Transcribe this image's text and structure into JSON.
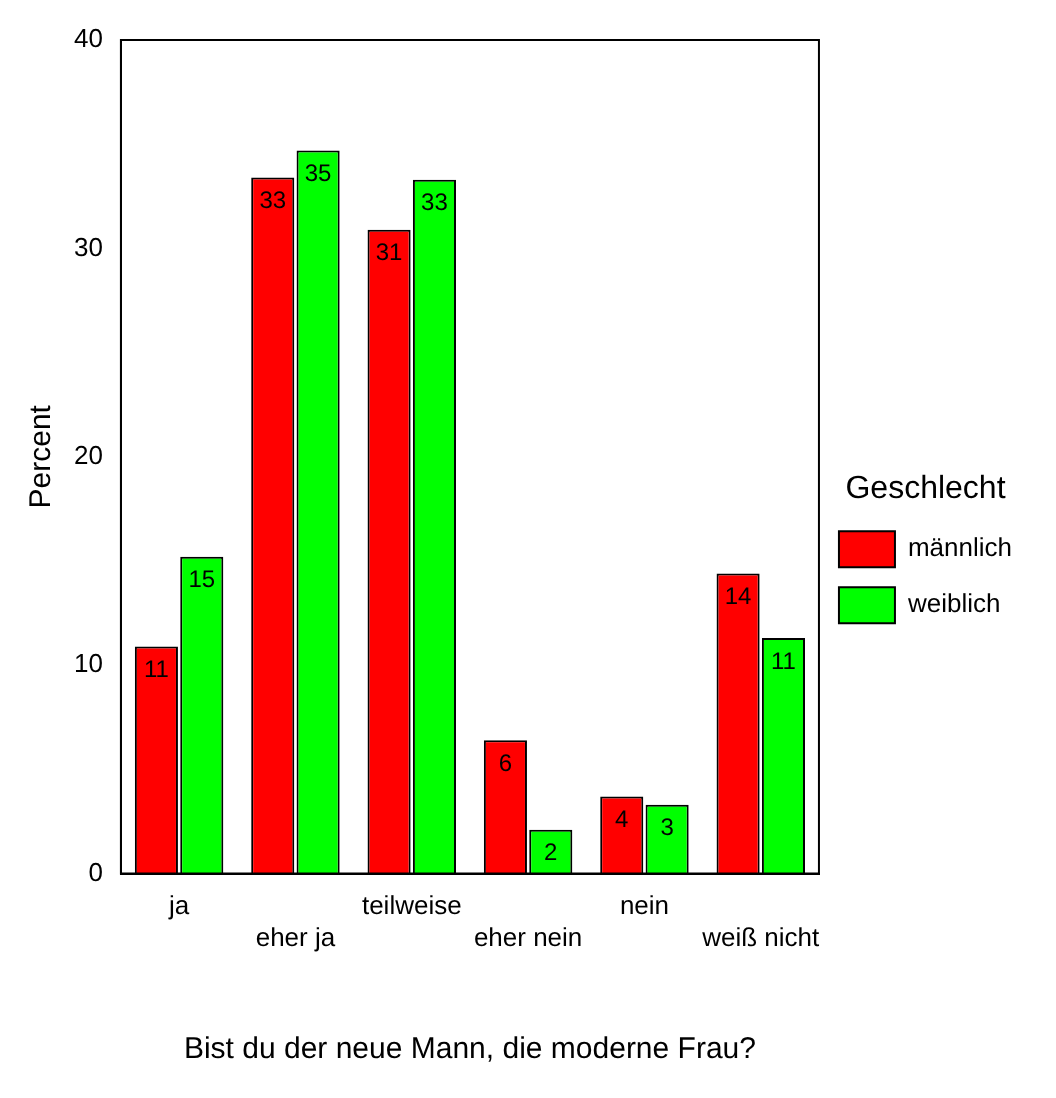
{
  "chart_data": {
    "type": "bar",
    "xlabel": "Bist du der neue Mann, die moderne Frau?",
    "ylabel": "Percent",
    "legend_title": "Geschlecht",
    "categories": [
      "ja",
      "eher ja",
      "teilweise",
      "eher nein",
      "nein",
      "weiß nicht"
    ],
    "series": [
      {
        "name": "männlich",
        "color": "#ff0000",
        "values": [
          10.9,
          33.4,
          30.9,
          6.4,
          3.7,
          14.4
        ],
        "value_labels": [
          "11",
          "33",
          "31",
          "6",
          "4",
          "14"
        ]
      },
      {
        "name": "weiblich",
        "color": "#00ff00",
        "values": [
          15.2,
          34.7,
          33.3,
          2.1,
          3.3,
          11.3
        ],
        "value_labels": [
          "15",
          "35",
          "33",
          "2",
          "3",
          "11"
        ]
      }
    ],
    "ylim": [
      0,
      40
    ],
    "yticks": [
      0,
      10,
      20,
      30,
      40
    ],
    "grid": false,
    "legend": "right"
  }
}
